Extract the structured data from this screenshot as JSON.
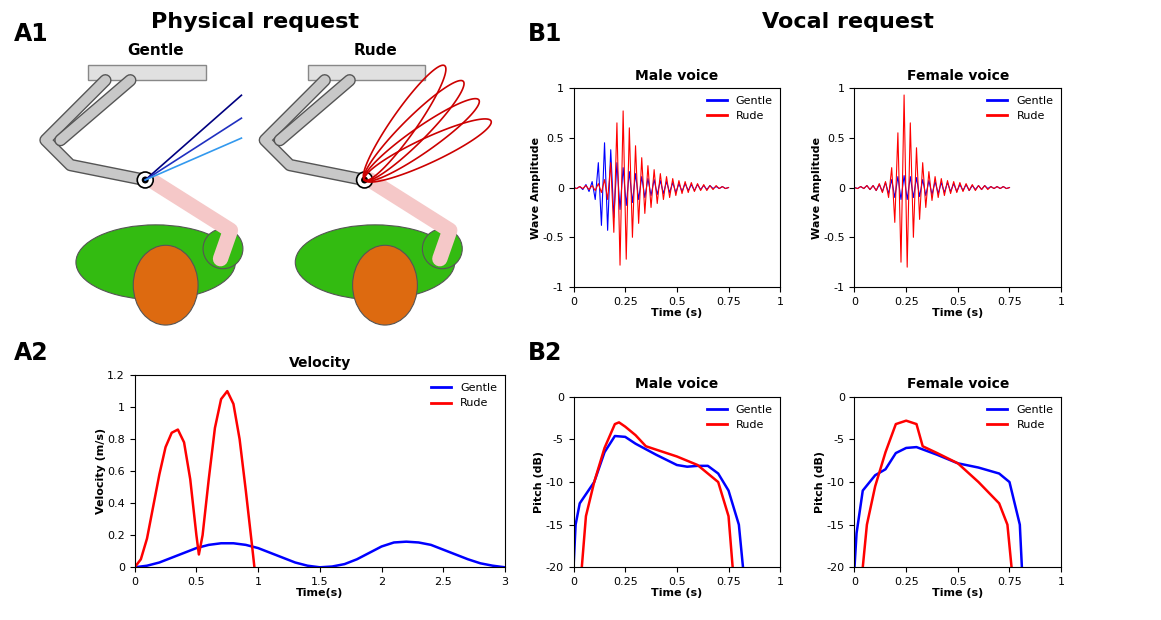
{
  "headings": [
    "Physical request",
    "Vocal request"
  ],
  "panel_labels": [
    "A1",
    "A2",
    "B1",
    "B2"
  ],
  "diagram": {
    "labels": [
      "Gentle",
      "Rude"
    ]
  },
  "chart_data": [
    {
      "type": "line",
      "title": "Velocity",
      "x_label": "Time(s)",
      "y_label": "Velocity (m/s)",
      "xlim": [
        0,
        3
      ],
      "ylim": [
        0,
        1.2
      ],
      "xticks": [
        0,
        0.5,
        1,
        1.5,
        2,
        2.5,
        3
      ],
      "yticks": [
        0,
        0.2,
        0.4,
        0.6,
        0.8,
        1,
        1.2
      ],
      "legend": "upper right",
      "series": [
        {
          "name": "Gentle",
          "color": "#0000ff",
          "x": [
            0,
            0.1,
            0.2,
            0.3,
            0.4,
            0.5,
            0.6,
            0.7,
            0.8,
            0.9,
            1.0,
            1.1,
            1.2,
            1.3,
            1.4,
            1.5,
            1.6,
            1.7,
            1.8,
            1.9,
            2.0,
            2.1,
            2.2,
            2.3,
            2.4,
            2.5,
            2.6,
            2.7,
            2.8,
            2.9,
            3.0
          ],
          "values": [
            0,
            0.01,
            0.03,
            0.06,
            0.09,
            0.12,
            0.14,
            0.15,
            0.15,
            0.14,
            0.12,
            0.09,
            0.06,
            0.03,
            0.01,
            0,
            0.005,
            0.02,
            0.05,
            0.09,
            0.13,
            0.155,
            0.16,
            0.155,
            0.14,
            0.11,
            0.08,
            0.05,
            0.025,
            0.01,
            0
          ]
        },
        {
          "name": "Rude",
          "color": "#ff0000",
          "x": [
            0,
            0.05,
            0.1,
            0.15,
            0.2,
            0.25,
            0.3,
            0.35,
            0.4,
            0.45,
            0.5,
            0.52,
            0.55,
            0.6,
            0.65,
            0.7,
            0.75,
            0.8,
            0.85,
            0.9,
            0.95,
            0.97
          ],
          "values": [
            0,
            0.05,
            0.18,
            0.38,
            0.58,
            0.75,
            0.84,
            0.86,
            0.78,
            0.55,
            0.2,
            0.08,
            0.2,
            0.55,
            0.87,
            1.05,
            1.1,
            1.02,
            0.8,
            0.48,
            0.14,
            0
          ]
        }
      ]
    },
    {
      "type": "line",
      "title": "Male voice",
      "x_label": "Time (s)",
      "y_label": "Wave Amplitude",
      "xlim": [
        0,
        1
      ],
      "ylim": [
        -1,
        1
      ],
      "xticks": [
        0,
        0.25,
        0.5,
        0.75,
        1
      ],
      "yticks": [
        -1,
        -0.5,
        0,
        0.5,
        1
      ],
      "legend": "upper right",
      "x": [
        0,
        0.015,
        0.03,
        0.045,
        0.06,
        0.075,
        0.09,
        0.105,
        0.12,
        0.135,
        0.15,
        0.165,
        0.18,
        0.195,
        0.21,
        0.225,
        0.24,
        0.255,
        0.27,
        0.285,
        0.3,
        0.315,
        0.33,
        0.345,
        0.36,
        0.375,
        0.39,
        0.405,
        0.42,
        0.435,
        0.45,
        0.465,
        0.48,
        0.495,
        0.51,
        0.525,
        0.54,
        0.555,
        0.57,
        0.585,
        0.6,
        0.615,
        0.63,
        0.645,
        0.66,
        0.675,
        0.69,
        0.705,
        0.72,
        0.735,
        0.75
      ],
      "series": [
        {
          "name": "Gentle",
          "color": "#0000ff",
          "values": [
            0,
            -0.01,
            0.01,
            -0.02,
            0.03,
            -0.04,
            0.06,
            -0.12,
            0.25,
            -0.38,
            0.45,
            -0.43,
            0.38,
            -0.3,
            0.25,
            -0.22,
            0.2,
            -0.18,
            0.16,
            -0.15,
            0.14,
            -0.12,
            0.11,
            -0.1,
            0.09,
            -0.08,
            0.08,
            -0.07,
            0.07,
            -0.06,
            0.06,
            -0.05,
            0.05,
            -0.05,
            0.04,
            -0.04,
            0.04,
            -0.03,
            0.03,
            -0.03,
            0.03,
            -0.02,
            0.02,
            -0.02,
            0.02,
            -0.01,
            0.01,
            -0.01,
            0.01,
            -0.01,
            0
          ]
        },
        {
          "name": "Rude",
          "color": "#ff0000",
          "values": [
            0,
            -0.01,
            0.01,
            -0.01,
            0.02,
            -0.02,
            0.02,
            -0.03,
            0.04,
            -0.05,
            0.08,
            -0.12,
            0.25,
            -0.45,
            0.65,
            -0.78,
            0.77,
            -0.72,
            0.6,
            -0.5,
            0.42,
            -0.36,
            0.3,
            -0.26,
            0.22,
            -0.2,
            0.18,
            -0.16,
            0.14,
            -0.12,
            0.11,
            -0.1,
            0.09,
            -0.08,
            0.07,
            -0.06,
            0.06,
            -0.05,
            0.05,
            -0.04,
            0.04,
            -0.03,
            0.03,
            -0.03,
            0.02,
            -0.02,
            0.02,
            -0.01,
            0.01,
            -0.01,
            0
          ]
        }
      ]
    },
    {
      "type": "line",
      "title": "Female voice",
      "x_label": "Time (s)",
      "y_label": "Wave Amplitude",
      "xlim": [
        0,
        1
      ],
      "ylim": [
        -1,
        1
      ],
      "xticks": [
        0,
        0.25,
        0.5,
        0.75,
        1
      ],
      "yticks": [
        -1,
        -0.5,
        0,
        0.5,
        1
      ],
      "legend": "upper right",
      "x": [
        0,
        0.015,
        0.03,
        0.045,
        0.06,
        0.075,
        0.09,
        0.105,
        0.12,
        0.135,
        0.15,
        0.165,
        0.18,
        0.195,
        0.21,
        0.225,
        0.24,
        0.255,
        0.27,
        0.285,
        0.3,
        0.315,
        0.33,
        0.345,
        0.36,
        0.375,
        0.39,
        0.405,
        0.42,
        0.435,
        0.45,
        0.465,
        0.48,
        0.495,
        0.51,
        0.525,
        0.54,
        0.555,
        0.57,
        0.585,
        0.6,
        0.615,
        0.63,
        0.645,
        0.66,
        0.675,
        0.69,
        0.705,
        0.72,
        0.735,
        0.75
      ],
      "series": [
        {
          "name": "Gentle",
          "color": "#0000ff",
          "values": [
            0,
            -0.01,
            0.01,
            -0.01,
            0.02,
            -0.02,
            0.02,
            -0.03,
            0.03,
            -0.04,
            0.05,
            -0.06,
            0.08,
            -0.1,
            0.11,
            -0.12,
            0.12,
            -0.12,
            0.11,
            -0.1,
            0.1,
            -0.09,
            0.08,
            -0.08,
            0.07,
            -0.07,
            0.06,
            -0.06,
            0.05,
            -0.05,
            0.05,
            -0.04,
            0.04,
            -0.04,
            0.03,
            -0.03,
            0.03,
            -0.03,
            0.02,
            -0.02,
            0.02,
            -0.02,
            0.02,
            -0.01,
            0.01,
            -0.01,
            0.01,
            -0.01,
            0.01,
            -0.01,
            0
          ]
        },
        {
          "name": "Rude",
          "color": "#ff0000",
          "values": [
            0,
            -0.01,
            0.01,
            -0.01,
            0.02,
            -0.02,
            0.02,
            -0.03,
            0.04,
            -0.05,
            0.06,
            -0.1,
            0.2,
            -0.35,
            0.55,
            -0.75,
            0.93,
            -0.8,
            0.65,
            -0.5,
            0.4,
            -0.32,
            0.25,
            -0.2,
            0.16,
            -0.13,
            0.11,
            -0.1,
            0.09,
            -0.08,
            0.07,
            -0.06,
            0.06,
            -0.05,
            0.05,
            -0.04,
            0.04,
            -0.03,
            0.03,
            -0.03,
            0.02,
            -0.02,
            0.02,
            -0.02,
            0.01,
            -0.01,
            0.01,
            -0.01,
            0.01,
            -0.01,
            0
          ]
        }
      ]
    },
    {
      "type": "line",
      "title": "Male voice",
      "x_label": "Time (s)",
      "y_label": "Pitch (dB)",
      "xlim": [
        0,
        1
      ],
      "ylim": [
        -20,
        0
      ],
      "xticks": [
        0,
        0.25,
        0.5,
        0.75,
        1
      ],
      "yticks": [
        -20,
        -15,
        -10,
        -5,
        0
      ],
      "legend": "upper right",
      "series": [
        {
          "name": "Gentle",
          "color": "#0000ff",
          "x": [
            0,
            0.01,
            0.03,
            0.1,
            0.15,
            0.2,
            0.25,
            0.3,
            0.4,
            0.5,
            0.55,
            0.6,
            0.65,
            0.7,
            0.75,
            0.8,
            0.82
          ],
          "values": [
            -20,
            -15,
            -12.5,
            -10,
            -6.5,
            -4.6,
            -4.7,
            -5.5,
            -6.8,
            -8,
            -8.2,
            -8.1,
            -8.1,
            -9,
            -11,
            -15,
            -20
          ]
        },
        {
          "name": "Rude",
          "color": "#ff0000",
          "x": [
            0.04,
            0.06,
            0.1,
            0.15,
            0.2,
            0.22,
            0.25,
            0.3,
            0.35,
            0.5,
            0.6,
            0.7,
            0.75,
            0.77
          ],
          "values": [
            -20,
            -14,
            -10,
            -6,
            -3.2,
            -3,
            -3.5,
            -4.5,
            -5.8,
            -7,
            -8,
            -10,
            -14,
            -20
          ]
        }
      ]
    },
    {
      "type": "line",
      "title": "Female voice",
      "x_label": "Time (s)",
      "y_label": "Pitch (dB)",
      "xlim": [
        0,
        1
      ],
      "ylim": [
        -20,
        0
      ],
      "xticks": [
        0,
        0.25,
        0.5,
        0.75,
        1
      ],
      "yticks": [
        -20,
        -15,
        -10,
        -5,
        0
      ],
      "legend": "upper right",
      "series": [
        {
          "name": "Gentle",
          "color": "#0000ff",
          "x": [
            0,
            0.01,
            0.04,
            0.1,
            0.15,
            0.2,
            0.25,
            0.3,
            0.4,
            0.5,
            0.6,
            0.7,
            0.75,
            0.8,
            0.81
          ],
          "values": [
            -20,
            -16,
            -11,
            -9.2,
            -8.5,
            -6.6,
            -6,
            -5.9,
            -6.8,
            -7.8,
            -8.3,
            -9,
            -10,
            -15,
            -20
          ]
        },
        {
          "name": "Rude",
          "color": "#ff0000",
          "x": [
            0.04,
            0.06,
            0.1,
            0.15,
            0.2,
            0.25,
            0.3,
            0.33,
            0.4,
            0.5,
            0.6,
            0.7,
            0.74,
            0.76
          ],
          "values": [
            -20,
            -15,
            -10.5,
            -6.5,
            -3.2,
            -2.8,
            -3.2,
            -5.8,
            -6.6,
            -7.8,
            -10,
            -12.5,
            -15,
            -20
          ]
        }
      ]
    }
  ]
}
